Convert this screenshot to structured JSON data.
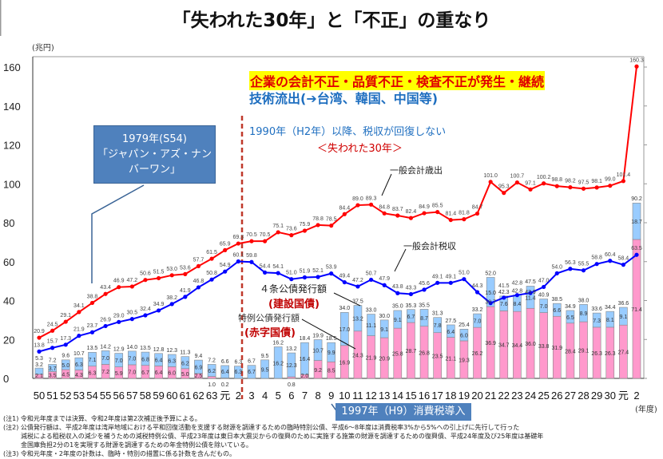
{
  "title": "「失われた30年」と「不正」の重なり",
  "annotations": {
    "fraud": "企業の会計不正・品質不正・検査不正が発生・継続",
    "tech_outflow": "技術流出(➔台湾、韓国、中国等)",
    "since_1990": "1990年（H2年）以降、税収が回復しない",
    "lost_30": "＜失われた30年＞",
    "box_1979_line1": "1979年(S54)",
    "box_1979_line2": "「ジャパン・アズ・ナンバーワン」",
    "label_expenditure": "一般会計歳出",
    "label_tax": "一般会計税収",
    "label_art4": "４条公債発行額",
    "label_construction": "(建設国債)",
    "label_special": "特例公債発行額",
    "label_deficit": "(赤字国債)",
    "box_1997": "1997年（H9）消費税導入"
  },
  "notes": [
    "(注1) 令和元年度までは決算、令和2年度は第2次補正後予算による。",
    "(注2) 公債発行額は、平成2年度は湾岸地域における平和回復活動を支援する財源を調達するための臨時特別公債、平成6～8年度は消費税率3%から5%への引上げに先行して行った",
    "減税による租税収入の減少を補うための減税特例公債、平成23年度は東日本大震災からの復興のために実施する施策の財源を調達するための復興債、平成24年度及び25年度は基礎年",
    "金国庫負担2分の1を実現する財源を調達するための年金特例公債を除いている。",
    "(注3) 令和元年度・2年度の計数は、臨時・特別の措置に係る計数を含んだもの。"
  ],
  "chart_data": {
    "type": "bar+line",
    "ylabel": "(兆円)",
    "xlabel": "(年度)",
    "ylim": [
      0,
      160
    ],
    "yticks": [
      0,
      20,
      40,
      60,
      80,
      100,
      120,
      140,
      160
    ],
    "grid": false,
    "categories": [
      "50",
      "51",
      "52",
      "53",
      "54",
      "55",
      "56",
      "57",
      "58",
      "59",
      "60",
      "61",
      "62",
      "63",
      "元",
      "2",
      "3",
      "4",
      "5",
      "6",
      "7",
      "8",
      "9",
      "10",
      "11",
      "12",
      "13",
      "14",
      "15",
      "16",
      "17",
      "18",
      "19",
      "20",
      "21",
      "22",
      "23",
      "24",
      "25",
      "26",
      "27",
      "28",
      "29",
      "30",
      "元",
      "2"
    ],
    "colors": {
      "expenditure": "#ff0000",
      "tax": "#0000ff",
      "construction": "#99ccff",
      "deficit": "#ff99cc",
      "divider": "#c0392b"
    },
    "series": [
      {
        "name": "一般会計歳出",
        "type": "line",
        "values": [
          20.9,
          24.5,
          29.1,
          34.1,
          38.8,
          43.4,
          46.9,
          47.2,
          50.6,
          51.5,
          53.0,
          53.6,
          57.7,
          61.5,
          65.9,
          69.3,
          70.5,
          70.5,
          75.1,
          73.6,
          75.9,
          78.8,
          78.5,
          84.4,
          89.0,
          89.3,
          84.8,
          83.7,
          82.4,
          84.9,
          85.5,
          81.4,
          81.8,
          84.7,
          101.0,
          95.3,
          100.7,
          97.1,
          100.2,
          98.8,
          98.2,
          97.5,
          98.1,
          99.0,
          101.4,
          160.3
        ]
      },
      {
        "name": "一般会計税収",
        "type": "line",
        "values": [
          13.8,
          15.7,
          17.3,
          21.9,
          23.7,
          26.9,
          29.0,
          30.5,
          32.4,
          34.9,
          38.2,
          41.9,
          46.8,
          50.8,
          54.9,
          60.1,
          59.8,
          54.4,
          54.1,
          51.0,
          51.9,
          52.1,
          53.9,
          49.4,
          47.2,
          50.7,
          47.9,
          43.8,
          43.3,
          45.6,
          49.1,
          49.1,
          51.0,
          44.3,
          38.7,
          41.5,
          42.8,
          43.9,
          47.0,
          54.0,
          56.3,
          55.5,
          58.8,
          60.4,
          58.4,
          63.5
        ]
      },
      {
        "name": "特例公債発行額",
        "type": "bar",
        "values": [
          2.1,
          3.5,
          4.5,
          4.3,
          6.3,
          7.2,
          5.9,
          7.0,
          6.7,
          6.4,
          6.0,
          5.0,
          2.5,
          1.0,
          0.2,
          0,
          0,
          0,
          0,
          0.8,
          2.0,
          9.2,
          8.5,
          16.9,
          24.3,
          21.9,
          20.9,
          25.8,
          28.7,
          26.8,
          23.5,
          21.1,
          19.3,
          26.2,
          36.9,
          34.7,
          34.4,
          36.0,
          33.8,
          31.9,
          28.4,
          29.1,
          26.3,
          26.3,
          27.4,
          71.4
        ]
      },
      {
        "name": "４条公債発行額",
        "type": "bar",
        "values": [
          3.2,
          3.7,
          5.0,
          6.3,
          7.1,
          7.0,
          7.0,
          7.0,
          6.8,
          6.4,
          6.3,
          6.2,
          6.9,
          6.2,
          6.4,
          6.3,
          6.7,
          9.5,
          16.2,
          12.3,
          16.4,
          10.7,
          9.9,
          17.0,
          13.2,
          11.1,
          9.1,
          9.1,
          6.7,
          8.7,
          7.8,
          6.4,
          6.0,
          7.0,
          15.0,
          7.6,
          8.4,
          11.4,
          7.0,
          6.6,
          6.5,
          8.9,
          7.3,
          8.1,
          9.1,
          18.7
        ]
      }
    ],
    "bond_totals": [
      5.3,
      7.2,
      9.6,
      10.7,
      13.5,
      14.2,
      12.9,
      14.0,
      13.5,
      12.8,
      12.3,
      11.3,
      9.4,
      7.2,
      6.6,
      6.3,
      6.7,
      9.5,
      16.2,
      13.2,
      18.4,
      19.9,
      18.5,
      34.0,
      37.5,
      33.0,
      30.0,
      35.0,
      35.3,
      35.5,
      31.3,
      27.5,
      25.4,
      33.2,
      52.0,
      42.3,
      42.8,
      47.5,
      40.9,
      38.5,
      34.9,
      38.0,
      33.6,
      34.4,
      36.6,
      90.2
    ]
  }
}
